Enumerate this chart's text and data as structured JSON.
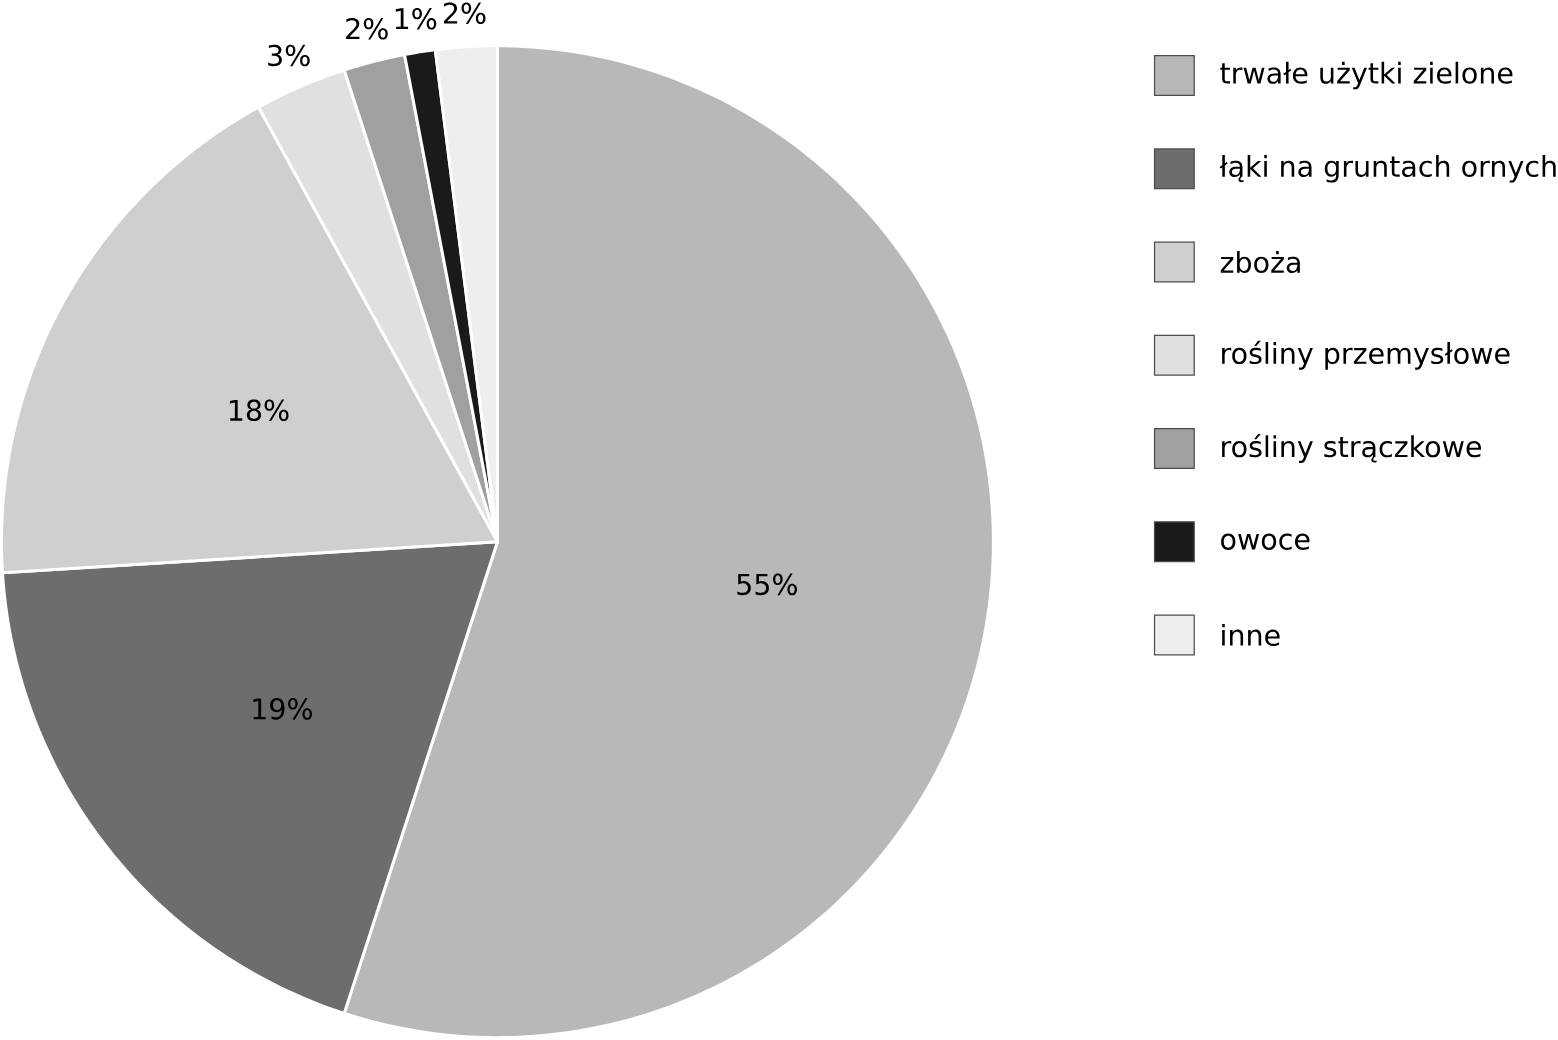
{
  "chart_data": {
    "type": "pie",
    "categories": [
      "trwałe użytki zielone",
      "łąki na gruntach ornych",
      "zboża",
      "rośliny przemysłowe",
      "rośliny strączkowe",
      "owoce",
      "inne"
    ],
    "values": [
      55,
      19,
      18,
      3,
      2,
      1,
      2
    ],
    "value_labels": [
      "55%",
      "19%",
      "18%",
      "3%",
      "2%",
      "1%",
      "2%"
    ],
    "colors": [
      "#b8b8b8",
      "#6d6d6d",
      "#cfcfcf",
      "#e0e0e0",
      "#a0a0a0",
      "#1a1a1a",
      "#eeeeee"
    ],
    "legend": "right"
  }
}
